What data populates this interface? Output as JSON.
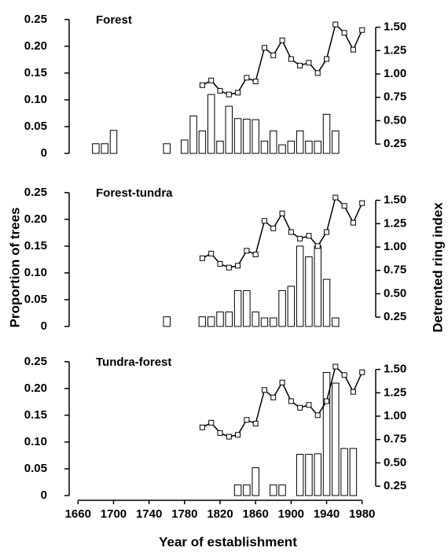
{
  "shared": {
    "ylabel": "Proportion of trees",
    "y2label": "Detrented ring index",
    "xlabel": "Year of establishment"
  },
  "chart_data": [
    {
      "type": "bar",
      "title": "Forest",
      "xlim": [
        1650,
        1990
      ],
      "ylim": [
        0,
        0.26
      ],
      "yticks": [
        0,
        0.05,
        {
          "value": 0.1,
          "label": "0.10"
        },
        0.15,
        {
          "value": 0.2,
          "label": "0.20"
        },
        0.25
      ],
      "y2lim": [
        0.15,
        1.64
      ],
      "y2ticks": [
        0.25,
        {
          "value": 0.5,
          "label": "0.50"
        },
        0.75,
        {
          "value": 1,
          "label": "1.00"
        },
        1.25,
        {
          "value": 1.5,
          "label": "1.50"
        }
      ],
      "series": [
        {
          "type": "bar",
          "color": "#ffffff",
          "x": [
            1680,
            1690,
            1700,
            1760,
            1780,
            1790,
            1800,
            1810,
            1820,
            1830,
            1840,
            1850,
            1860,
            1870,
            1880,
            1890,
            1900,
            1910,
            1920,
            1930,
            1940,
            1950
          ],
          "values": [
            0.018,
            0.018,
            0.043,
            0.018,
            0.025,
            0.07,
            0.042,
            0.11,
            0.023,
            0.088,
            0.065,
            0.064,
            0.063,
            0.023,
            0.042,
            0.016,
            0.023,
            0.042,
            0.023,
            0.023,
            0.073,
            0.042
          ]
        },
        {
          "type": "line",
          "axis": "y2",
          "color": "#000000",
          "x": [
            1800,
            1810,
            1820,
            1830,
            1840,
            1850,
            1860,
            1870,
            1880,
            1890,
            1900,
            1910,
            1920,
            1930,
            1940,
            1950,
            1960,
            1970,
            1980
          ],
          "values": [
            0.88,
            0.93,
            0.82,
            0.78,
            0.8,
            0.96,
            0.92,
            1.28,
            1.2,
            1.36,
            1.16,
            1.09,
            1.12,
            1.01,
            1.16,
            1.53,
            1.44,
            1.26,
            1.47
          ]
        }
      ]
    },
    {
      "type": "bar",
      "title": "Forest-tundra",
      "xlim": [
        1650,
        1990
      ],
      "ylim": [
        0,
        0.26
      ],
      "yticks": [
        0,
        0.05,
        {
          "value": 0.1,
          "label": "0.10"
        },
        0.15,
        {
          "value": 0.2,
          "label": "0.20"
        },
        0.25
      ],
      "y2lim": [
        0.15,
        1.64
      ],
      "y2ticks": [
        0.25,
        {
          "value": 0.5,
          "label": "0.50"
        },
        0.75,
        {
          "value": 1,
          "label": "1.00"
        },
        1.25,
        {
          "value": 1.5,
          "label": "1.50"
        }
      ],
      "series": [
        {
          "type": "bar",
          "color": "#ffffff",
          "x": [
            1760,
            1800,
            1810,
            1820,
            1830,
            1840,
            1850,
            1860,
            1870,
            1880,
            1890,
            1900,
            1910,
            1920,
            1930,
            1940,
            1950
          ],
          "values": [
            0.018,
            0.018,
            0.018,
            0.027,
            0.027,
            0.067,
            0.067,
            0.027,
            0.016,
            0.016,
            0.067,
            0.075,
            0.15,
            0.13,
            0.15,
            0.088,
            0.016
          ]
        },
        {
          "type": "line",
          "axis": "y2",
          "color": "#000000",
          "x": [
            1800,
            1810,
            1820,
            1830,
            1840,
            1850,
            1860,
            1870,
            1880,
            1890,
            1900,
            1910,
            1920,
            1930,
            1940,
            1950,
            1960,
            1970,
            1980
          ],
          "values": [
            0.88,
            0.93,
            0.82,
            0.78,
            0.8,
            0.96,
            0.92,
            1.28,
            1.2,
            1.36,
            1.16,
            1.09,
            1.12,
            1.01,
            1.16,
            1.53,
            1.44,
            1.26,
            1.47
          ]
        }
      ]
    },
    {
      "type": "bar",
      "title": "Tundra-forest",
      "xlim": [
        1650,
        1990
      ],
      "ylim": [
        0,
        0.26
      ],
      "yticks": [
        0,
        0.05,
        {
          "value": 0.1,
          "label": "0.10"
        },
        0.15,
        {
          "value": 0.2,
          "label": "0.20"
        },
        0.25
      ],
      "y2lim": [
        0.15,
        1.64
      ],
      "y2ticks": [
        0.25,
        {
          "value": 0.5,
          "label": "0.50"
        },
        0.75,
        {
          "value": 1,
          "label": "1.00"
        },
        1.25,
        {
          "value": 1.5,
          "label": "1.50"
        }
      ],
      "xticks": [
        1660,
        1700,
        1740,
        1780,
        1820,
        1860,
        1900,
        1940,
        1980
      ],
      "series": [
        {
          "type": "bar",
          "color": "#ffffff",
          "x": [
            1840,
            1850,
            1860,
            1880,
            1890,
            1910,
            1920,
            1930,
            1940,
            1950,
            1960,
            1970
          ],
          "values": [
            0.02,
            0.02,
            0.052,
            0.02,
            0.02,
            0.077,
            0.077,
            0.078,
            0.23,
            0.21,
            0.088,
            0.088
          ]
        },
        {
          "type": "line",
          "axis": "y2",
          "color": "#000000",
          "x": [
            1800,
            1810,
            1820,
            1830,
            1840,
            1850,
            1860,
            1870,
            1880,
            1890,
            1900,
            1910,
            1920,
            1930,
            1940,
            1950,
            1960,
            1970,
            1980
          ],
          "values": [
            0.88,
            0.93,
            0.82,
            0.78,
            0.8,
            0.96,
            0.92,
            1.28,
            1.2,
            1.36,
            1.16,
            1.09,
            1.12,
            1.01,
            1.16,
            1.53,
            1.44,
            1.26,
            1.47
          ]
        }
      ]
    }
  ]
}
